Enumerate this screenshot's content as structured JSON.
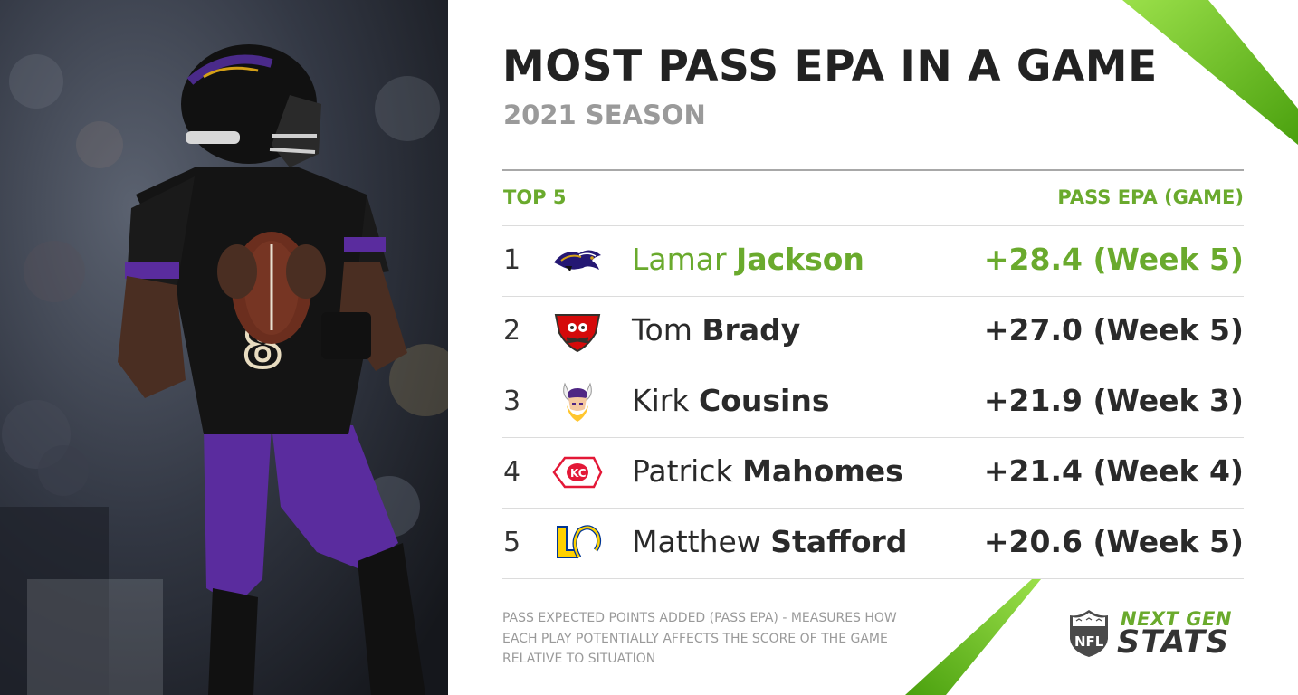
{
  "header": {
    "title": "MOST PASS EPA IN A GAME",
    "subtitle": "2021 SEASON"
  },
  "columns": {
    "left": "TOP 5",
    "right": "PASS EPA (GAME)"
  },
  "rows": [
    {
      "rank": "1",
      "first": "Lamar",
      "last": "Jackson",
      "value": "+28.4 (Week 5)",
      "team_icon": "ravens-logo-icon",
      "highlight": true
    },
    {
      "rank": "2",
      "first": "Tom",
      "last": "Brady",
      "value": "+27.0 (Week 5)",
      "team_icon": "buccaneers-logo-icon",
      "highlight": false
    },
    {
      "rank": "3",
      "first": "Kirk",
      "last": "Cousins",
      "value": "+21.9 (Week 3)",
      "team_icon": "vikings-logo-icon",
      "highlight": false
    },
    {
      "rank": "4",
      "first": "Patrick",
      "last": "Mahomes",
      "value": "+21.4 (Week 4)",
      "team_icon": "chiefs-logo-icon",
      "highlight": false
    },
    {
      "rank": "5",
      "first": "Matthew",
      "last": "Stafford",
      "value": "+20.6 (Week 5)",
      "team_icon": "rams-logo-icon",
      "highlight": false
    }
  ],
  "footnote": "PASS EXPECTED POINTS ADDED (PASS EPA) - MEASURES HOW EACH PLAY POTENTIALLY AFFECTS THE SCORE OF THE GAME RELATIVE TO SITUATION",
  "brand": {
    "line1": "NEXT GEN",
    "line2": "STATS",
    "logo": "nfl-shield-icon"
  },
  "colors": {
    "accent_green": "#6aaa2d",
    "text_dark": "#2a2a2a",
    "text_gray": "#9a9a9a",
    "ravens_purple": "#241773",
    "stripe_green": "#7cc520"
  }
}
